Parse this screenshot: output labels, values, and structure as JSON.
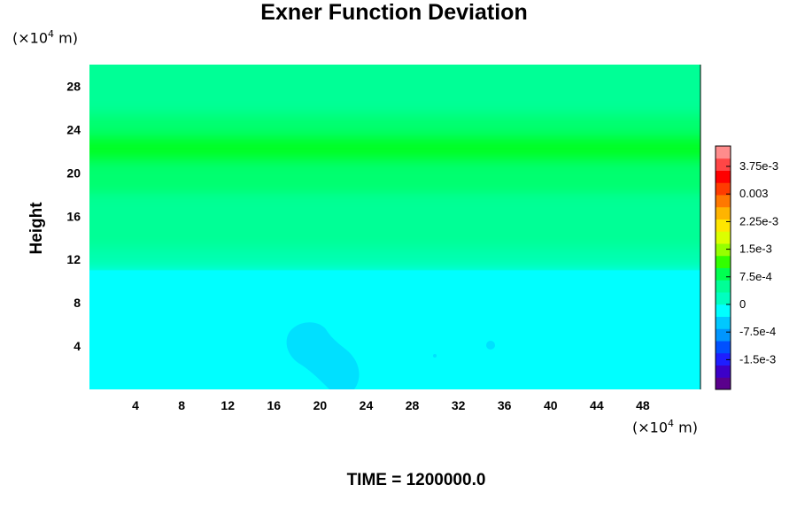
{
  "title": "Exner Function Deviation",
  "y_unit": {
    "prefix": "(×10",
    "exp": "4",
    "suffix": " m)"
  },
  "x_unit": {
    "prefix": "(×10",
    "exp": "4",
    "suffix": " m)"
  },
  "ylabel": "Height",
  "time_label": "TIME = 1200000.0",
  "chart_data": {
    "type": "heatmap",
    "title": "Exner Function Deviation",
    "xlabel": "",
    "ylabel": "Height",
    "x_unit": "×10^4 m",
    "y_unit": "×10^4 m",
    "xlim": [
      0,
      53
    ],
    "ylim": [
      0,
      30
    ],
    "x_ticks": [
      "4",
      "8",
      "12",
      "16",
      "20",
      "24",
      "28",
      "32",
      "36",
      "40",
      "44",
      "48"
    ],
    "y_ticks": [
      "4",
      "8",
      "12",
      "16",
      "20",
      "24",
      "28"
    ],
    "colorbar": {
      "ticks": [
        "3.75e-3",
        "0.003",
        "2.25e-3",
        "1.5e-3",
        "7.5e-4",
        "0",
        "-7.5e-4",
        "-1.5e-3"
      ],
      "colors": [
        "#5a008c",
        "#3c00c8",
        "#1e1eff",
        "#0050ff",
        "#0096ff",
        "#00c8ff",
        "#00ffff",
        "#00ffc0",
        "#00ff96",
        "#00ff50",
        "#32ff00",
        "#96ff00",
        "#dcff00",
        "#ffe600",
        "#ffb400",
        "#ff7800",
        "#ff3c00",
        "#ff0000",
        "#ff4646",
        "#ff8c8c"
      ]
    },
    "bands": [
      {
        "y0": 0,
        "y1": 11,
        "color": "#00ffff"
      },
      {
        "y0": 11,
        "y1": 13,
        "color": "#00ffb0"
      },
      {
        "y0": 13,
        "y1": 18,
        "color": "#00ff96"
      },
      {
        "y0": 18,
        "y1": 21,
        "color": "#00ff70"
      },
      {
        "y0": 21,
        "y1": 23.5,
        "color": "#00ff28"
      },
      {
        "y0": 23.5,
        "y1": 25.5,
        "color": "#00ff70"
      },
      {
        "y0": 25.5,
        "y1": 30,
        "color": "#00ff96"
      }
    ],
    "anomaly_color": "#00e0ff"
  }
}
